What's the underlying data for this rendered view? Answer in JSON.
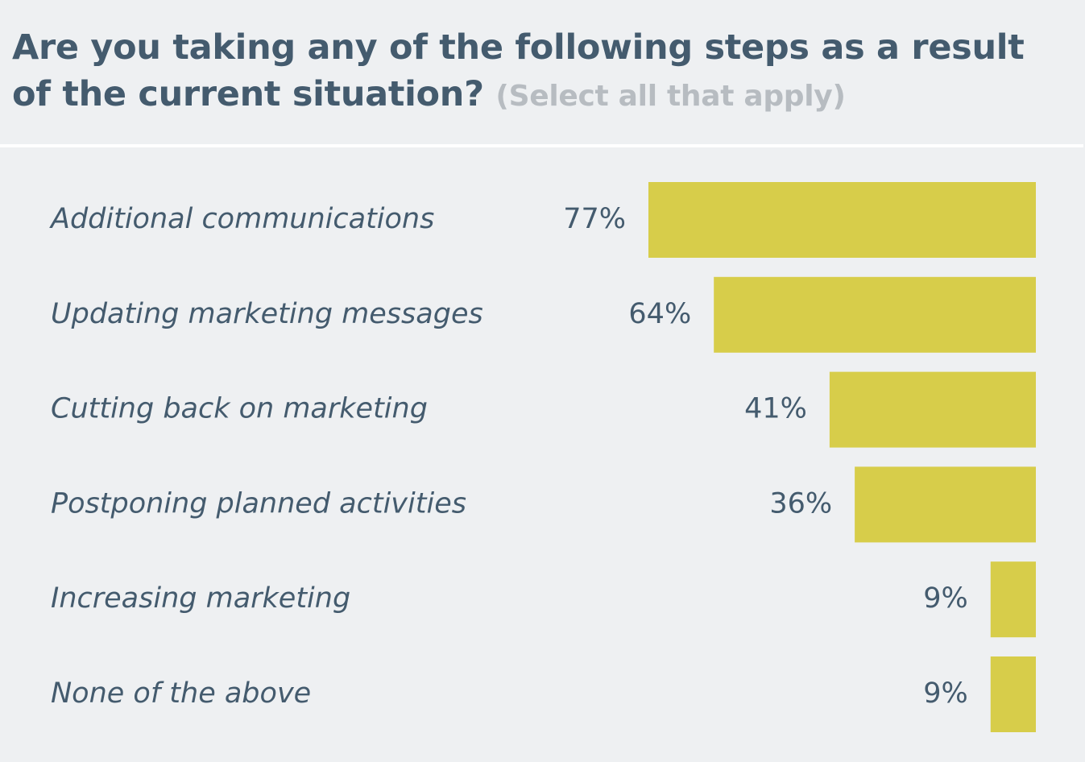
{
  "header": {
    "title": "Are you taking any of the following steps as a result of the current situation?",
    "subtitle": "(Select all that apply)"
  },
  "colors": {
    "background": "#eef0f2",
    "bar": "#d7cd4a",
    "text": "#445b6e",
    "subtitle": "#b7bcc1"
  },
  "chart_data": {
    "type": "bar",
    "orientation": "horizontal",
    "categories": [
      "Additional communications",
      "Updating marketing messages",
      "Cutting back on marketing",
      "Postponing planned activities",
      "Increasing marketing",
      "None of the above"
    ],
    "values": [
      77,
      64,
      41,
      36,
      9,
      9
    ],
    "value_labels": [
      "77%",
      "64%",
      "41%",
      "36%",
      "9%",
      "9%"
    ],
    "unit": "%",
    "xlim": [
      0,
      77
    ],
    "grid": false,
    "legend": "none"
  }
}
